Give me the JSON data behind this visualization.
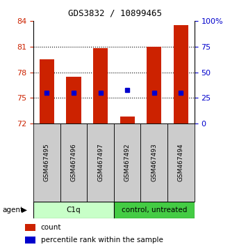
{
  "title": "GDS3832 / 10899465",
  "samples": [
    "GSM467495",
    "GSM467496",
    "GSM467497",
    "GSM467492",
    "GSM467493",
    "GSM467494"
  ],
  "bar_tops": [
    79.5,
    77.5,
    80.8,
    72.8,
    81.0,
    83.5
  ],
  "bar_bottom": 72.0,
  "percentile_right": [
    30,
    30,
    30,
    33,
    30,
    30
  ],
  "ylim_left": [
    72,
    84
  ],
  "ylim_right": [
    0,
    100
  ],
  "yticks_left": [
    72,
    75,
    78,
    81,
    84
  ],
  "ytick_labels_left": [
    "72",
    "75",
    "78",
    "81",
    "84"
  ],
  "yticks_right": [
    0,
    25,
    50,
    75,
    100
  ],
  "ytick_labels_right": [
    "0",
    "25",
    "50",
    "75",
    "100%"
  ],
  "groups": [
    {
      "label": "C1q",
      "start": 0,
      "end": 3,
      "color": "#c8ffc8"
    },
    {
      "label": "control, untreated",
      "start": 3,
      "end": 6,
      "color": "#44cc44"
    }
  ],
  "bar_color": "#cc2200",
  "percentile_color": "#0000cc",
  "bar_width": 0.55,
  "left_axis_color": "#cc2200",
  "right_axis_color": "#0000cc",
  "grid_ticks": [
    75,
    78,
    81
  ],
  "sample_box_color": "#cccccc",
  "title_fontsize": 9,
  "tick_fontsize": 8
}
